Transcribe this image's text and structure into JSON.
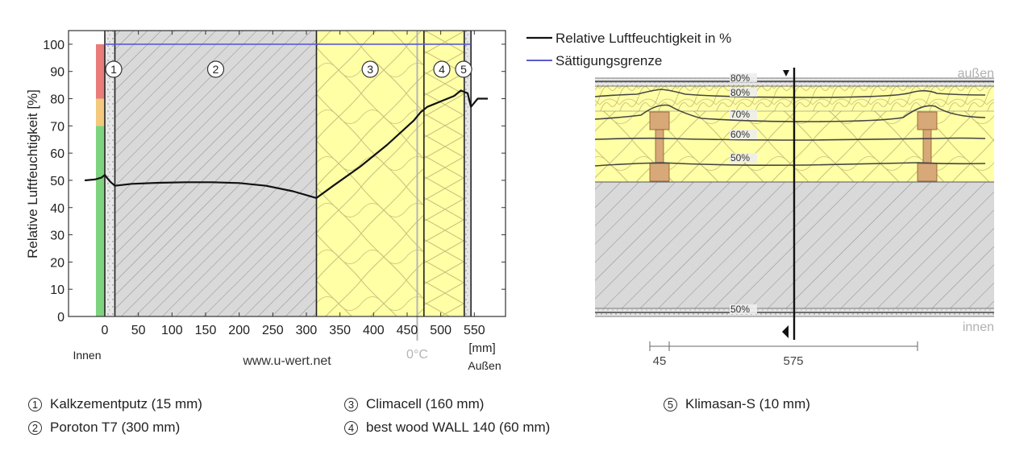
{
  "chart_data": {
    "type": "line",
    "xlabel": "[mm]",
    "ylabel": "Relative Luftfeuchtigkeit [%]",
    "xlim": [
      -30,
      580
    ],
    "ylim": [
      0,
      105
    ],
    "xticks": [
      0,
      50,
      100,
      150,
      200,
      250,
      300,
      350,
      400,
      450,
      500,
      550
    ],
    "yticks": [
      0,
      10,
      20,
      30,
      40,
      50,
      60,
      70,
      80,
      90,
      100
    ],
    "inside_label": "Innen",
    "outside_label": "Außen",
    "website": "www.u-wert.net",
    "dewpoint_label": "0°C",
    "dewpoint_x": 465,
    "series": [
      {
        "name": "Relative Luftfeuchtigkeit in %",
        "color": "#111111",
        "x": [
          -30,
          -15,
          -5,
          0,
          3,
          8,
          15,
          40,
          80,
          120,
          160,
          200,
          240,
          280,
          315,
          340,
          380,
          420,
          460,
          470,
          480,
          500,
          520,
          530,
          540,
          545,
          555,
          570
        ],
        "y": [
          50,
          50.3,
          51,
          52,
          51,
          49.5,
          48,
          48.7,
          49.1,
          49.3,
          49.3,
          49,
          48,
          46,
          43.5,
          48,
          55,
          63,
          72,
          75,
          77,
          79,
          81,
          83,
          82,
          77,
          80,
          80
        ]
      },
      {
        "name": "Sättigungsgrenze",
        "color": "#5a5ad2",
        "x": [
          0,
          545
        ],
        "y": [
          100,
          100
        ]
      }
    ],
    "layers": [
      {
        "id": "1",
        "name": "Kalkzementputz (15 mm)",
        "x0": 0,
        "x1": 15,
        "fill": "dots"
      },
      {
        "id": "2",
        "name": "Poroton T7 (300 mm)",
        "x0": 15,
        "x1": 315,
        "fill": "hatch"
      },
      {
        "id": "3",
        "name": "Climacell (160 mm)",
        "x0": 315,
        "x1": 475,
        "fill": "insulation"
      },
      {
        "id": "4",
        "name": "best wood WALL 140 (60 mm)",
        "x0": 475,
        "x1": 535,
        "fill": "insulation"
      },
      {
        "id": "5",
        "name": "Klimasan-S (10 mm)",
        "x0": 535,
        "x1": 545,
        "fill": "dots"
      }
    ],
    "humidity_bands": [
      {
        "from": 0,
        "to": 70,
        "color": "#7ed37e"
      },
      {
        "from": 70,
        "to": 80,
        "color": "#f2c97d"
      },
      {
        "from": 80,
        "to": 100,
        "color": "#ea7b7b"
      }
    ]
  },
  "section_view": {
    "outside_label": "außen",
    "inside_label": "innen",
    "contour_labels": [
      "80%",
      "80%",
      "70%",
      "60%",
      "50%",
      "50%"
    ],
    "dimensions": [
      "45",
      "575"
    ]
  },
  "legend_footer": [
    {
      "num": "1",
      "label": "Kalkzementputz (15 mm)"
    },
    {
      "num": "2",
      "label": "Poroton T7 (300 mm)"
    },
    {
      "num": "3",
      "label": "Climacell (160 mm)"
    },
    {
      "num": "4",
      "label": "best wood WALL 140 (60 mm)"
    },
    {
      "num": "5",
      "label": "Klimasan-S (10 mm)"
    }
  ]
}
